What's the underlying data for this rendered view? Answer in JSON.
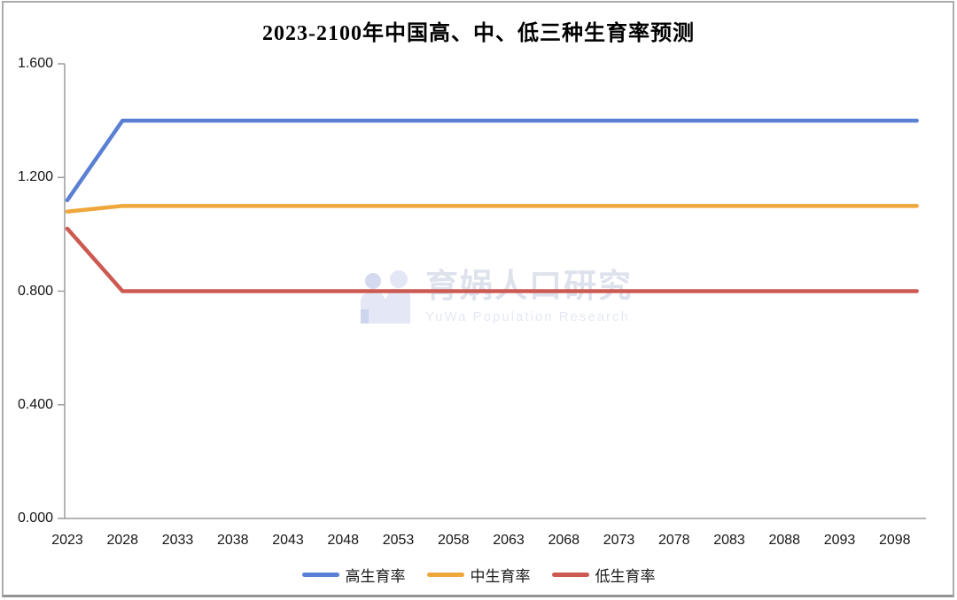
{
  "watermark": {
    "text_cn": "育娲人口研究",
    "text_en": "YuWa Population Research",
    "logo_color": "#e3e7f6",
    "logo_accent_color": "#ccd4ee"
  },
  "chart_data": {
    "type": "line",
    "title": "2023-2100年中国高、中、低三种生育率预测",
    "xlabel": "",
    "ylabel": "",
    "x_range": [
      2023,
      2100
    ],
    "x_ticks": [
      2023,
      2028,
      2033,
      2038,
      2043,
      2048,
      2053,
      2058,
      2063,
      2068,
      2073,
      2078,
      2083,
      2088,
      2093,
      2098
    ],
    "ylim": [
      0,
      1.6
    ],
    "y_ticks": [
      1.6,
      1.2,
      0.8,
      0.4,
      0.0
    ],
    "y_tick_labels": [
      "1.600",
      "1.200",
      "0.800",
      "0.400",
      "0.000"
    ],
    "grid": false,
    "legend_position": "bottom",
    "axis_color": "#9b9b9b",
    "series": [
      {
        "name": "高生育率",
        "color": "#5B7FD4",
        "points": [
          [
            2023,
            1.12
          ],
          [
            2028,
            1.4
          ],
          [
            2100,
            1.4
          ]
        ]
      },
      {
        "name": "中生育率",
        "color": "#EFA73C",
        "points": [
          [
            2023,
            1.08
          ],
          [
            2028,
            1.1
          ],
          [
            2100,
            1.1
          ]
        ]
      },
      {
        "name": "低生育率",
        "color": "#CC5A52",
        "points": [
          [
            2023,
            1.02
          ],
          [
            2028,
            0.8
          ],
          [
            2100,
            0.8
          ]
        ]
      }
    ]
  }
}
